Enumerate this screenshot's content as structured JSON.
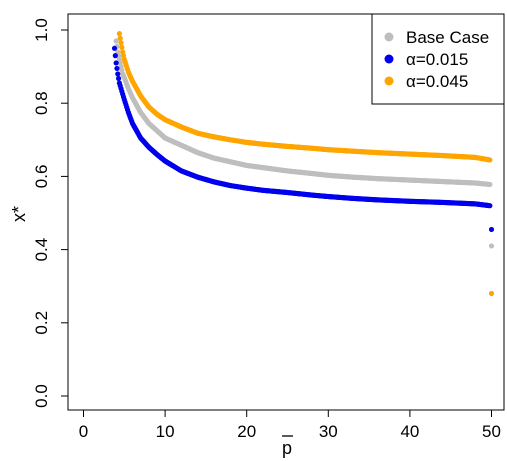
{
  "chart_data": {
    "type": "scatter",
    "title": "",
    "xlabel": "p",
    "xlabel_overline": true,
    "ylabel": "x*",
    "xlim": [
      0,
      50
    ],
    "ylim": [
      0.0,
      1.0
    ],
    "xticks": [
      "0",
      "10",
      "20",
      "30",
      "40",
      "50"
    ],
    "yticks": [
      "0.0",
      "0.2",
      "0.4",
      "0.6",
      "0.8",
      "1.0"
    ],
    "grid": false,
    "legend_position": "top-right",
    "series": [
      {
        "name": "Base Case",
        "color": "#bebebe",
        "points": [
          [
            4.0,
            0.97
          ],
          [
            4.2,
            0.94
          ],
          [
            4.4,
            0.92
          ],
          [
            4.6,
            0.9
          ],
          [
            4.8,
            0.88
          ],
          [
            5,
            0.87
          ],
          [
            5.5,
            0.84
          ],
          [
            6,
            0.815
          ],
          [
            7,
            0.775
          ],
          [
            8,
            0.745
          ],
          [
            9,
            0.725
          ],
          [
            10,
            0.705
          ],
          [
            12,
            0.685
          ],
          [
            14,
            0.665
          ],
          [
            16,
            0.65
          ],
          [
            18,
            0.64
          ],
          [
            20,
            0.63
          ],
          [
            22,
            0.624
          ],
          [
            25,
            0.615
          ],
          [
            28,
            0.608
          ],
          [
            30,
            0.603
          ],
          [
            33,
            0.598
          ],
          [
            36,
            0.594
          ],
          [
            40,
            0.59
          ],
          [
            44,
            0.586
          ],
          [
            48,
            0.582
          ],
          [
            49.8,
            0.578
          ],
          [
            50,
            0.41
          ]
        ]
      },
      {
        "name": "α=0.015",
        "color": "#0000ee",
        "points": [
          [
            3.8,
            0.95
          ],
          [
            4.0,
            0.91
          ],
          [
            4.2,
            0.88
          ],
          [
            4.4,
            0.855
          ],
          [
            4.6,
            0.84
          ],
          [
            5,
            0.81
          ],
          [
            5.5,
            0.775
          ],
          [
            6,
            0.745
          ],
          [
            7,
            0.705
          ],
          [
            8,
            0.68
          ],
          [
            9,
            0.66
          ],
          [
            10,
            0.642
          ],
          [
            12,
            0.615
          ],
          [
            14,
            0.598
          ],
          [
            16,
            0.585
          ],
          [
            18,
            0.575
          ],
          [
            20,
            0.568
          ],
          [
            22,
            0.562
          ],
          [
            25,
            0.556
          ],
          [
            28,
            0.549
          ],
          [
            30,
            0.545
          ],
          [
            33,
            0.54
          ],
          [
            36,
            0.536
          ],
          [
            40,
            0.532
          ],
          [
            44,
            0.529
          ],
          [
            48,
            0.525
          ],
          [
            49.8,
            0.52
          ],
          [
            50,
            0.455
          ]
        ]
      },
      {
        "name": "α=0.045",
        "color": "#ffa500",
        "points": [
          [
            4.4,
            0.99
          ],
          [
            4.6,
            0.965
          ],
          [
            4.8,
            0.94
          ],
          [
            5,
            0.92
          ],
          [
            5.5,
            0.885
          ],
          [
            6,
            0.86
          ],
          [
            7,
            0.82
          ],
          [
            8,
            0.79
          ],
          [
            9,
            0.77
          ],
          [
            10,
            0.755
          ],
          [
            12,
            0.735
          ],
          [
            14,
            0.718
          ],
          [
            16,
            0.708
          ],
          [
            18,
            0.7
          ],
          [
            20,
            0.693
          ],
          [
            22,
            0.688
          ],
          [
            25,
            0.682
          ],
          [
            28,
            0.677
          ],
          [
            30,
            0.673
          ],
          [
            33,
            0.669
          ],
          [
            36,
            0.665
          ],
          [
            40,
            0.661
          ],
          [
            44,
            0.657
          ],
          [
            48,
            0.652
          ],
          [
            49.8,
            0.645
          ],
          [
            50,
            0.28
          ]
        ]
      }
    ]
  }
}
